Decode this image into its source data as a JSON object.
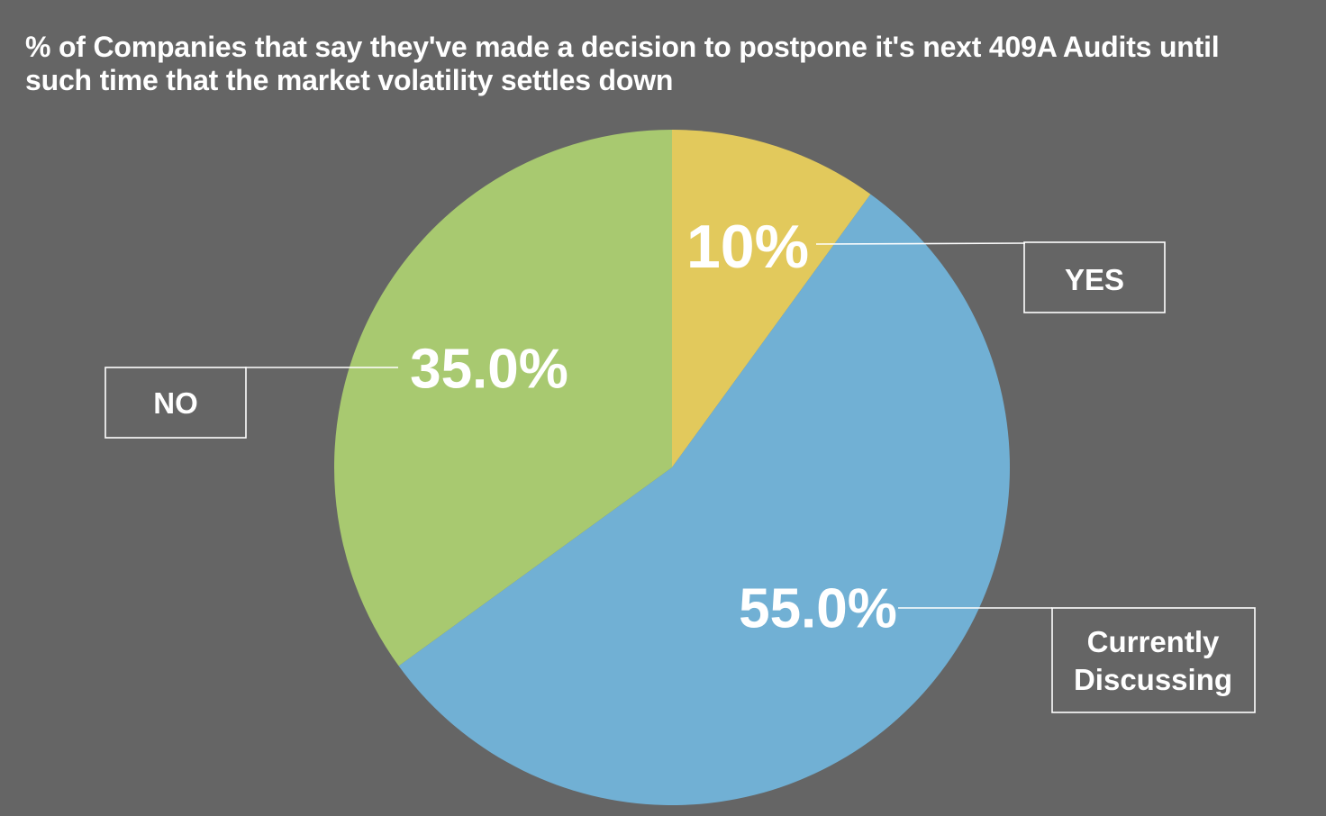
{
  "chart_data": {
    "type": "pie",
    "title": "% of Companies that say they've made a decision to postpone it's next 409A Audits until\nsuch time that the market volatility settles down",
    "slices": [
      {
        "name": "YES",
        "value": 10,
        "value_label": "10%",
        "color": "#e2c95c"
      },
      {
        "name": "Currently Discussing",
        "value": 55,
        "value_label": "55.0%",
        "color": "#71b0d4"
      },
      {
        "name": "NO",
        "value": 35,
        "value_label": "35.0%",
        "color": "#a8c970"
      }
    ],
    "start_angle": "12 o'clock",
    "direction": "clockwise",
    "label_style": "callout boxes with leader lines",
    "background_color": "#656565",
    "text_color": "#ffffff"
  }
}
